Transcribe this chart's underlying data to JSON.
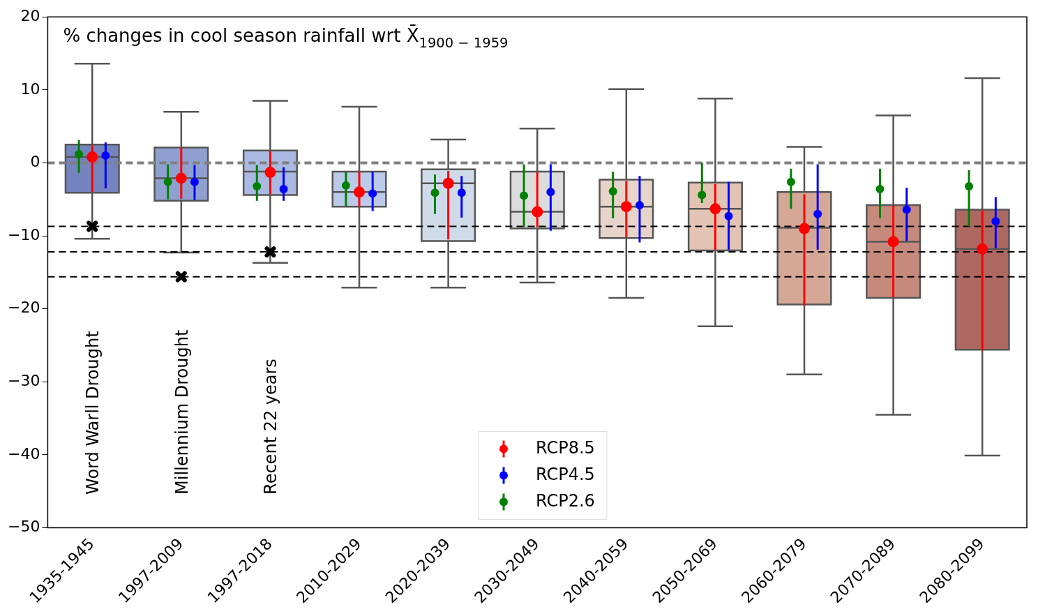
{
  "chart_data": {
    "type": "box",
    "title": "% changes in cool season rainfall wrt X̄$_{1900 − 1959}$",
    "categories": [
      "1935-1945",
      "1997-2009",
      "1997-2018",
      "2010-2029",
      "2020-2039",
      "2030-2049",
      "2040-2059",
      "2050-2069",
      "2060-2079",
      "2070-2089",
      "2080-2099"
    ],
    "boxes": [
      {
        "low": -10.4,
        "q1": -4.1,
        "median": 0.8,
        "q3": 2.5,
        "high": 13.6,
        "outliers": [
          -8.7
        ]
      },
      {
        "low": -12.3,
        "q1": -5.2,
        "median": -2.1,
        "q3": 2.1,
        "high": 7.0,
        "outliers": [
          -15.6
        ]
      },
      {
        "low": -13.7,
        "q1": -4.4,
        "median": -1.2,
        "q3": 1.7,
        "high": 8.5,
        "outliers": [
          -12.2
        ]
      },
      {
        "low": -17.1,
        "q1": -6.0,
        "median": -4.0,
        "q3": -1.2,
        "high": 7.7
      },
      {
        "low": -17.1,
        "q1": -10.7,
        "median": -2.8,
        "q3": -0.9,
        "high": 3.2
      },
      {
        "low": -16.4,
        "q1": -9.0,
        "median": -6.7,
        "q3": -1.2,
        "high": 4.7
      },
      {
        "low": -18.5,
        "q1": -10.3,
        "median": -6.0,
        "q3": -2.3,
        "high": 10.1
      },
      {
        "low": -22.4,
        "q1": -12.0,
        "median": -6.3,
        "q3": -2.7,
        "high": 8.8
      },
      {
        "low": -29.0,
        "q1": -19.4,
        "median": -8.9,
        "q3": -4.0,
        "high": 2.2
      },
      {
        "low": -34.5,
        "q1": -18.5,
        "median": -10.8,
        "q3": -5.8,
        "high": 6.5
      },
      {
        "low": -40.1,
        "q1": -25.6,
        "median": -11.8,
        "q3": -6.4,
        "high": 11.6
      }
    ],
    "colors": [
      "#7584bf",
      "#8fa0d0",
      "#a9b9e1",
      "#bccaea",
      "#d0dbea",
      "#dcdcdc",
      "#e6d3ca",
      "#e2c3b4",
      "#d4a797",
      "#c68a7c",
      "#ae6862"
    ],
    "series": [
      {
        "name": "RCP8.5",
        "type": "scatter",
        "color": "#ff0000",
        "values": [
          0.8,
          -2.1,
          -1.3,
          -4.0,
          -2.8,
          -6.7,
          -6.0,
          -6.3,
          -9.0,
          -10.8,
          -11.8
        ],
        "errors": [
          [
            -4.0,
            2.4
          ],
          [
            -4.9,
            2.1
          ],
          [
            -4.3,
            1.6
          ],
          [
            -6.0,
            -1.2
          ],
          [
            -10.5,
            -1.1
          ],
          [
            -8.8,
            -1.3
          ],
          [
            -10.2,
            -2.5
          ],
          [
            -11.9,
            -2.9
          ],
          [
            -19.5,
            -4.3
          ],
          [
            -18.4,
            -5.9
          ],
          [
            -25.7,
            -6.5
          ]
        ]
      },
      {
        "name": "RCP4.5",
        "type": "scatter",
        "color": "#0000ff",
        "values": [
          1.0,
          -2.6,
          -3.6,
          -4.2,
          -4.1,
          -4.0,
          -5.8,
          -7.3,
          -7.0,
          -6.4,
          -8.0
        ],
        "errors": [
          [
            -3.5,
            2.8
          ],
          [
            -5.1,
            -0.3
          ],
          [
            -5.2,
            -0.6
          ],
          [
            -6.6,
            -1.2
          ],
          [
            -7.5,
            -1.8
          ],
          [
            -9.3,
            -0.2
          ],
          [
            -10.9,
            -1.8
          ],
          [
            -11.9,
            -2.6
          ],
          [
            -11.9,
            -0.2
          ],
          [
            -10.7,
            -3.4
          ],
          [
            -11.7,
            -4.7
          ]
        ]
      },
      {
        "name": "RCP2.6",
        "type": "scatter",
        "color": "#008000",
        "values": [
          1.2,
          -2.6,
          -3.2,
          -3.1,
          -4.1,
          -4.5,
          -3.9,
          -4.4,
          -2.6,
          -3.6,
          -3.2
        ],
        "errors": [
          [
            -1.4,
            3.1
          ],
          [
            -5.0,
            -0.2
          ],
          [
            -5.2,
            -0.3
          ],
          [
            -5.9,
            -1.3
          ],
          [
            -7.0,
            -1.6
          ],
          [
            -8.8,
            -0.2
          ],
          [
            -7.6,
            -1.2
          ],
          [
            -5.5,
            0.0
          ],
          [
            -6.3,
            -0.8
          ],
          [
            -7.6,
            -0.8
          ],
          [
            -8.7,
            -1.0
          ]
        ]
      }
    ],
    "ylim": [
      -50,
      20
    ],
    "yticks": [
      -50,
      -40,
      -30,
      -20,
      -10,
      0,
      10,
      20
    ],
    "ref_lines": [
      {
        "axis": "y",
        "value": 0,
        "color": "#808080",
        "line_style": "dashed"
      },
      {
        "axis": "y",
        "value": -8.7,
        "color": "#000000",
        "line_style": "dashed"
      },
      {
        "axis": "y",
        "value": -12.2,
        "color": "#000000",
        "line_style": "dashed"
      },
      {
        "axis": "y",
        "value": -15.6,
        "color": "#000000",
        "line_style": "dashed"
      }
    ],
    "annotations": [
      "Word Warll Drought",
      "Millennium Drought",
      "Recent 22 years"
    ],
    "legend": "bottom"
  }
}
